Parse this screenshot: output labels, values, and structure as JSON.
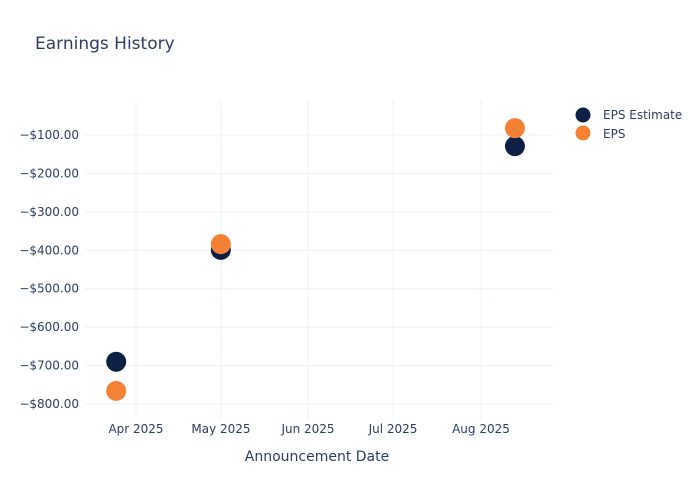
{
  "title": "Earnings History",
  "colors": {
    "estimate": "#0d1f44",
    "eps": "#f58134",
    "grid": "#ebf0f8",
    "text": "#2a3f5f"
  },
  "legend": [
    {
      "label": "EPS Estimate",
      "color": "#0d1f44"
    },
    {
      "label": "EPS",
      "color": "#f58134"
    }
  ],
  "xaxis": {
    "title": "Announcement Date",
    "ticks": [
      "Apr 2025",
      "May 2025",
      "Jun 2025",
      "Jul 2025",
      "Aug 2025"
    ]
  },
  "yaxis": {
    "ticks": [
      "−$100.00",
      "−$200.00",
      "−$300.00",
      "−$400.00",
      "−$500.00",
      "−$600.00",
      "−$700.00",
      "−$800.00"
    ]
  },
  "chart_data": {
    "type": "scatter",
    "title": "Earnings History",
    "xlabel": "Announcement Date",
    "ylabel": "",
    "x": [
      "2025-03-25",
      "2025-05-01",
      "2025-08-13"
    ],
    "series": [
      {
        "name": "EPS Estimate",
        "values": [
          -690,
          -399,
          -129
        ]
      },
      {
        "name": "EPS",
        "values": [
          -766,
          -384,
          -82
        ]
      }
    ],
    "xticks": [
      "Apr 2025",
      "May 2025",
      "Jun 2025",
      "Jul 2025",
      "Aug 2025"
    ],
    "yticks": [
      -100,
      -200,
      -300,
      -400,
      -500,
      -600,
      -700,
      -800
    ],
    "ylim": [
      -840,
      -10
    ],
    "grid": true,
    "legend_position": "right-top"
  }
}
